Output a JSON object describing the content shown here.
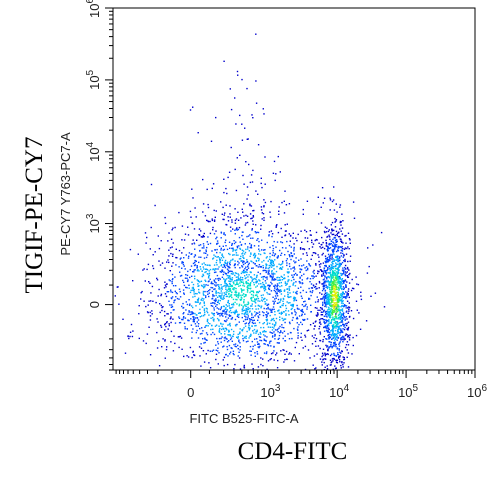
{
  "chart_data": {
    "type": "scatter",
    "title": "",
    "xlabel": "FITC B525-FITC-A",
    "ylabel": "PE-CY7 Y763-PC7-A",
    "outer_xlabel": "CD4-FITC",
    "outer_ylabel": "TIGIF-PE-CY7",
    "x_scale": "biexponential",
    "y_scale": "biexponential",
    "xlim": [
      -1000,
      1000000
    ],
    "ylim": [
      -600,
      1000000
    ],
    "x_ticks": [
      {
        "value": 0,
        "label": "0",
        "sup": ""
      },
      {
        "value": 1000,
        "label": "10",
        "sup": "3"
      },
      {
        "value": 10000,
        "label": "10",
        "sup": "4"
      },
      {
        "value": 100000,
        "label": "10",
        "sup": "5"
      },
      {
        "value": 1000000,
        "label": "10",
        "sup": "6"
      }
    ],
    "y_ticks": [
      {
        "value": 0,
        "label": "0",
        "sup": ""
      },
      {
        "value": 1000,
        "label": "10",
        "sup": "3"
      },
      {
        "value": 10000,
        "label": "10",
        "sup": "4"
      },
      {
        "value": 100000,
        "label": "10",
        "sup": "5"
      },
      {
        "value": 1000000,
        "label": "10",
        "sup": "6"
      }
    ],
    "grid": false,
    "density_colors": [
      "#0000cc",
      "#0044ff",
      "#00aaff",
      "#00ddcc",
      "#44ee44",
      "#ddee00",
      "#ffaa00"
    ],
    "populations": [
      {
        "center": [
          400,
          60
        ],
        "spread_x": [
          -1000,
          2200
        ],
        "spread_y": [
          -500,
          1400
        ],
        "events": 2600,
        "peak_color": "#00ddcc"
      },
      {
        "center": [
          9000,
          40
        ],
        "spread_x": [
          5500,
          14500
        ],
        "spread_y": [
          -450,
          1200
        ],
        "events": 1300,
        "peak_color": "#ddee00"
      }
    ]
  }
}
